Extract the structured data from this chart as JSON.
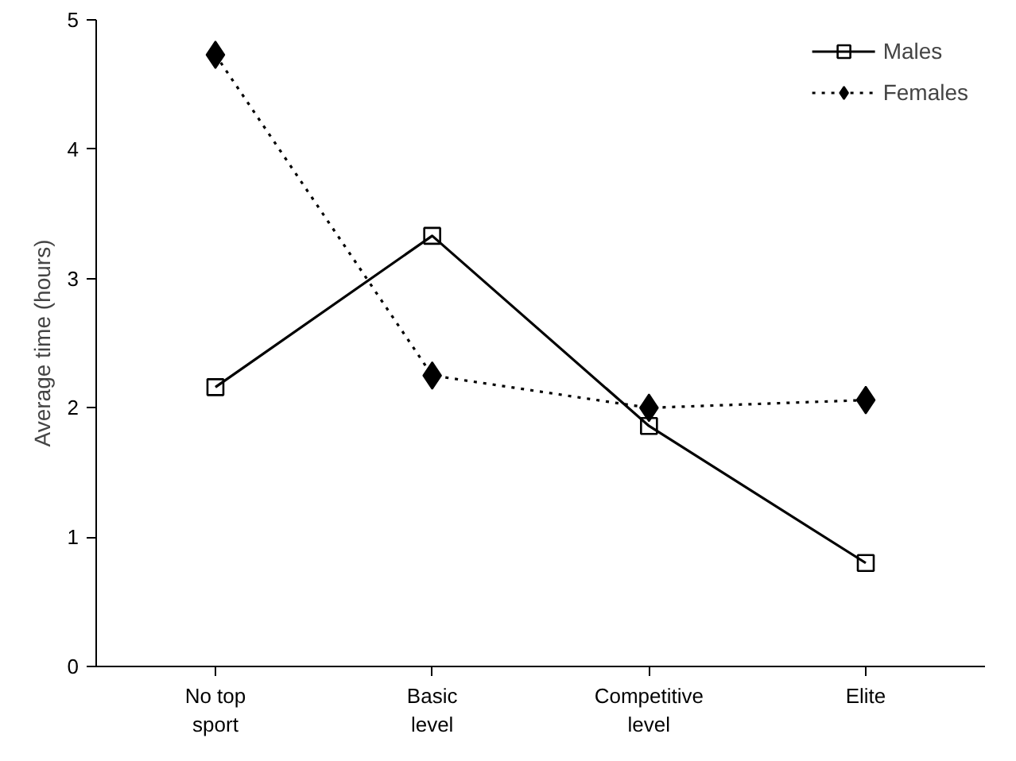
{
  "chart_data": {
    "type": "line",
    "ylabel": "Average time (hours)",
    "categories": [
      "No top sport",
      "Basic level",
      "Competitive level",
      "Elite"
    ],
    "series": [
      {
        "name": "Males",
        "color": "#000000",
        "values": [
          2.16,
          3.33,
          1.86,
          0.8
        ],
        "marker": "square",
        "line_style": "solid"
      },
      {
        "name": "Females",
        "color": "#000000",
        "values": [
          4.73,
          2.25,
          2.0,
          2.06
        ],
        "marker": "diamond",
        "line_style": "dotted"
      }
    ],
    "ylim": [
      0,
      5
    ],
    "yticks": [
      0,
      1,
      2,
      3,
      4,
      5
    ],
    "grid": false,
    "legend": "top right"
  }
}
